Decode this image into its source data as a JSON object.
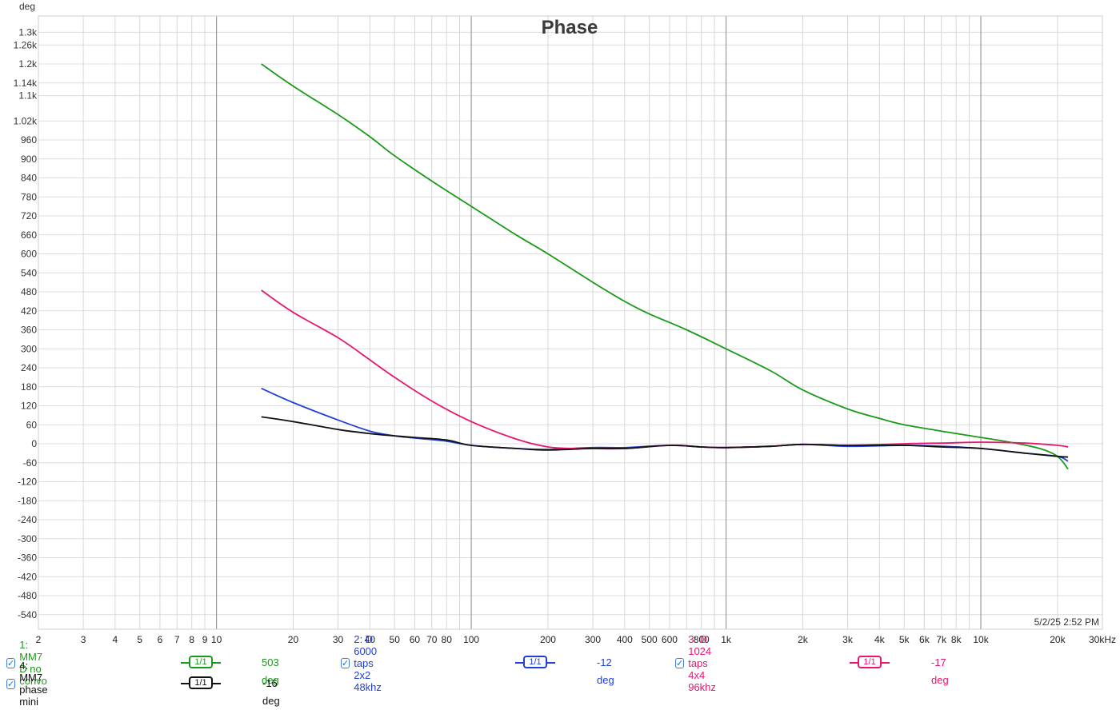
{
  "chart_data": {
    "type": "line",
    "title": "Phase",
    "ylabel": "deg",
    "x_scale": "log",
    "xlim": [
      2,
      30000
    ],
    "ylim": [
      -570,
      1340
    ],
    "grid": true,
    "y_ticks": [
      1300,
      1260,
      1200,
      1140,
      1100,
      1020,
      960,
      900,
      840,
      780,
      720,
      660,
      600,
      540,
      480,
      420,
      360,
      300,
      240,
      180,
      120,
      60,
      0,
      -60,
      -120,
      -180,
      -240,
      -300,
      -360,
      -420,
      -480,
      -540
    ],
    "y_tick_labels": [
      "1.3k",
      "1.26k",
      "1.2k",
      "1.14k",
      "1.1k",
      "1.02k",
      "960",
      "900",
      "840",
      "780",
      "720",
      "660",
      "600",
      "540",
      "480",
      "420",
      "360",
      "300",
      "240",
      "180",
      "120",
      "60",
      "0",
      "-60",
      "-120",
      "-180",
      "-240",
      "-300",
      "-360",
      "-420",
      "-480",
      "-540"
    ],
    "x_ticks": [
      2,
      3,
      4,
      5,
      6,
      7,
      8,
      9,
      10,
      20,
      30,
      40,
      50,
      60,
      70,
      80,
      100,
      200,
      300,
      400,
      500,
      600,
      800,
      1000,
      2000,
      3000,
      4000,
      5000,
      6000,
      7000,
      8000,
      10000,
      20000,
      30000
    ],
    "x_tick_labels": [
      "2",
      "3",
      "4",
      "5",
      "6",
      "7",
      "8",
      "9",
      "10",
      "20",
      "30",
      "40",
      "50",
      "60",
      "70",
      "80",
      "100",
      "200",
      "300",
      "400",
      "500",
      "600",
      "800",
      "1k",
      "2k",
      "3k",
      "4k",
      "5k",
      "6k",
      "7k",
      "8k",
      "10k",
      "20k",
      "30kHz"
    ],
    "x_grid_minor": [
      2,
      3,
      4,
      5,
      6,
      7,
      8,
      9,
      20,
      30,
      40,
      50,
      60,
      70,
      80,
      90,
      200,
      300,
      400,
      500,
      600,
      700,
      800,
      900,
      2000,
      3000,
      4000,
      5000,
      6000,
      7000,
      8000,
      9000,
      20000,
      30000
    ],
    "x_grid_major": [
      10,
      100,
      1000,
      10000
    ],
    "series": [
      {
        "name": "1: MM7 D no convo",
        "color": "#1a9a1a",
        "x": [
          15,
          20,
          30,
          40,
          50,
          70,
          100,
          150,
          200,
          300,
          400,
          500,
          700,
          1000,
          1500,
          2000,
          3000,
          4000,
          5000,
          7000,
          10000,
          13000,
          17000,
          20000,
          22000
        ],
        "y": [
          1200,
          1130,
          1040,
          970,
          910,
          830,
          750,
          660,
          600,
          510,
          450,
          410,
          360,
          300,
          230,
          170,
          110,
          80,
          60,
          40,
          20,
          5,
          -15,
          -40,
          -80
        ]
      },
      {
        "name": "2: D 6000 taps 2x2 48khz",
        "color": "#1f3fd6",
        "x": [
          15,
          20,
          30,
          40,
          50,
          60,
          80,
          100,
          150,
          200,
          300,
          400,
          600,
          800,
          1000,
          1500,
          2000,
          3000,
          5000,
          7000,
          10000,
          15000,
          20000,
          22000
        ],
        "y": [
          175,
          130,
          75,
          40,
          25,
          18,
          8,
          -5,
          -15,
          -18,
          -12,
          -12,
          -5,
          -10,
          -12,
          -8,
          -2,
          -8,
          -5,
          -8,
          -15,
          -30,
          -40,
          -55
        ]
      },
      {
        "name": "3: D 1024 taps 4x4 96khz",
        "color": "#e8166e",
        "x": [
          15,
          20,
          30,
          40,
          50,
          70,
          100,
          150,
          200,
          250,
          300,
          400,
          600,
          800,
          1000,
          1500,
          2000,
          3000,
          5000,
          7000,
          10000,
          15000,
          20000,
          22000
        ],
        "y": [
          485,
          415,
          335,
          265,
          210,
          135,
          70,
          15,
          -10,
          -15,
          -15,
          -15,
          -5,
          -10,
          -12,
          -8,
          -2,
          -5,
          0,
          2,
          5,
          2,
          -5,
          -10
        ]
      },
      {
        "name": "4: MM7 phase mini",
        "color": "#111111",
        "x": [
          15,
          20,
          30,
          40,
          50,
          60,
          80,
          100,
          150,
          200,
          300,
          400,
          600,
          800,
          1000,
          1500,
          2000,
          3000,
          5000,
          7000,
          10000,
          15000,
          20000,
          22000
        ],
        "y": [
          85,
          70,
          45,
          32,
          25,
          20,
          12,
          -5,
          -15,
          -20,
          -15,
          -15,
          -5,
          -10,
          -12,
          -8,
          -2,
          -5,
          -5,
          -10,
          -15,
          -30,
          -40,
          -42
        ]
      }
    ]
  },
  "timestamp": "5/2/25 2:52 PM",
  "legend": {
    "items": [
      {
        "label": "1: MM7 D no convo",
        "smoothing": "1/1",
        "value": "503 deg",
        "color": "#1a9a1a"
      },
      {
        "label": "2: D 6000 taps 2x2 48khz",
        "smoothing": "1/1",
        "value": "-12 deg",
        "color": "#1f3fd6"
      },
      {
        "label": "3: D 1024 taps 4x4 96khz",
        "smoothing": "1/1",
        "value": "-17 deg",
        "color": "#e8166e"
      },
      {
        "label": "4: MM7 phase mini",
        "smoothing": "1/1",
        "value": "-16 deg",
        "color": "#111111"
      }
    ]
  }
}
